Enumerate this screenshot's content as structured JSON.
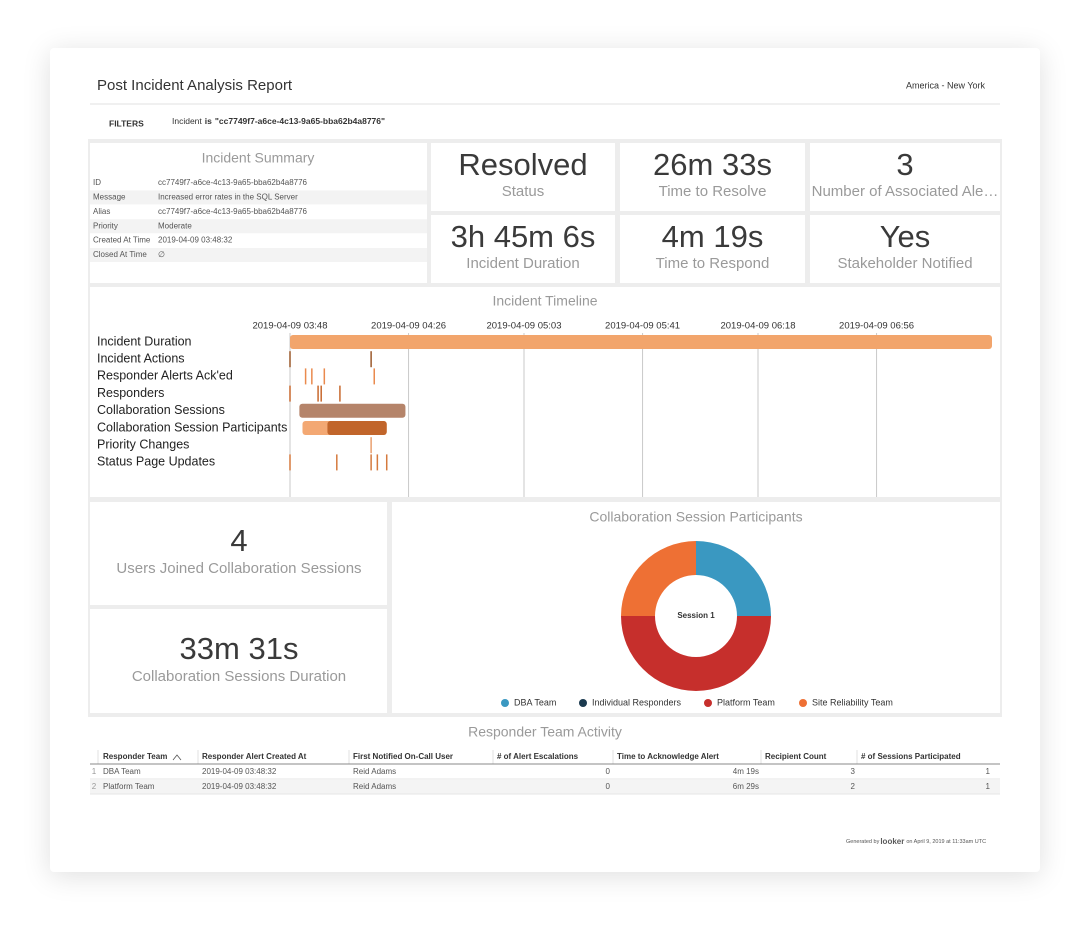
{
  "header": {
    "title": "Post Incident Analysis Report",
    "timezone": "America - New York"
  },
  "filters": {
    "label": "FILTERS",
    "field": "Incident",
    "operator": "is",
    "value": "\"cc7749f7-a6ce-4c13-9a65-bba62b4a8776\""
  },
  "summary": {
    "title": "Incident Summary",
    "rows": [
      [
        "ID",
        "cc7749f7-a6ce-4c13-9a65-bba62b4a8776"
      ],
      [
        "Message",
        "Increased error rates in the SQL Server"
      ],
      [
        "Alias",
        "cc7749f7-a6ce-4c13-9a65-bba62b4a8776"
      ],
      [
        "Priority",
        "Moderate"
      ],
      [
        "Created At Time",
        "2019-04-09 03:48:32"
      ],
      [
        "Closed At Time",
        "∅"
      ]
    ]
  },
  "tiles": [
    {
      "value": "Resolved",
      "label": "Status"
    },
    {
      "value": "26m 33s",
      "label": "Time to Resolve"
    },
    {
      "value": "3",
      "label": "Number of Associated Ale…"
    },
    {
      "value": "3h 45m 6s",
      "label": "Incident Duration"
    },
    {
      "value": "4m 19s",
      "label": "Time to Respond"
    },
    {
      "value": "Yes",
      "label": "Stakeholder Notified"
    }
  ],
  "timeline": {
    "type": "timeline",
    "title": "Incident Timeline",
    "xlim": [
      "2019-04-09 03:48",
      "2019-04-09 07:33"
    ],
    "xticks": [
      "2019-04-09 03:48",
      "2019-04-09 04:26",
      "2019-04-09 05:03",
      "2019-04-09 05:41",
      "2019-04-09 06:18",
      "2019-04-09 06:56"
    ],
    "grid": true,
    "rows": [
      {
        "label": "Incident Duration",
        "spans": [
          {
            "start": "2019-04-09 03:48",
            "end": "2019-04-09 07:33",
            "color": "#f2a56c"
          }
        ]
      },
      {
        "label": "Incident Actions",
        "color": "#9c5a2c",
        "points": [
          "2019-04-09 03:48",
          "2019-04-09 04:14"
        ]
      },
      {
        "label": "Responder Alerts Ack'ed",
        "color": "#ea8a4e",
        "points": [
          "2019-04-09 03:53",
          "2019-04-09 03:55",
          "2019-04-09 03:59",
          "2019-04-09 04:15"
        ]
      },
      {
        "label": "Responders",
        "color": "#c8692e",
        "points": [
          "2019-04-09 03:48",
          "2019-04-09 03:57",
          "2019-04-09 03:58",
          "2019-04-09 04:04"
        ]
      },
      {
        "label": "Collaboration Sessions",
        "spans": [
          {
            "start": "2019-04-09 03:51",
            "end": "2019-04-09 04:25",
            "color": "#b5846a"
          }
        ]
      },
      {
        "label": "Collaboration Session Participants",
        "spans": [
          {
            "start": "2019-04-09 03:52",
            "end": "2019-04-09 04:19",
            "color": "#f3a873"
          },
          {
            "start": "2019-04-09 04:00",
            "end": "2019-04-09 04:19",
            "color": "#c1652b"
          }
        ]
      },
      {
        "label": "Priority Changes",
        "color": "#e9a070",
        "points": [
          "2019-04-09 04:14"
        ]
      },
      {
        "label": "Status Page Updates",
        "color": "#d57a3e",
        "points": [
          "2019-04-09 03:48",
          "2019-04-09 04:03",
          "2019-04-09 04:14",
          "2019-04-09 04:16",
          "2019-04-09 04:19"
        ]
      }
    ]
  },
  "collaboration": {
    "users": {
      "value": "4",
      "label": "Users Joined Collaboration Sessions"
    },
    "duration": {
      "value": "33m 31s",
      "label": "Collaboration Sessions Duration"
    }
  },
  "donut": {
    "type": "pie",
    "title": "Collaboration Session Participants",
    "center_label": "Session 1",
    "categories": [
      "DBA Team",
      "Individual Responders",
      "Platform Team",
      "Site Reliability Team"
    ],
    "values": [
      25,
      0,
      50,
      25
    ],
    "colors": [
      "#3a98c1",
      "#1b3a4f",
      "#c62f2c",
      "#ee7034"
    ]
  },
  "table": {
    "title": "Responder Team Activity",
    "columns": [
      "Responder Team",
      "Responder Alert Created At",
      "First Notified On-Call User",
      "# of Alert Escalations",
      "Time to Acknowledge Alert",
      "Recipient Count",
      "# of Sessions Participated"
    ],
    "rows": [
      {
        "index": 1,
        "cells": [
          "DBA Team",
          "2019-04-09 03:48:32",
          "Reid Adams",
          0,
          "4m 19s",
          3,
          1
        ]
      },
      {
        "index": 2,
        "cells": [
          "Platform Team",
          "2019-04-09 03:48:32",
          "Reid Adams",
          0,
          "6m 29s",
          2,
          1
        ]
      }
    ]
  },
  "footer": {
    "prefix": "Generated by",
    "logo": "looker",
    "suffix": "on April 9, 2019 at 11:33am UTC"
  }
}
